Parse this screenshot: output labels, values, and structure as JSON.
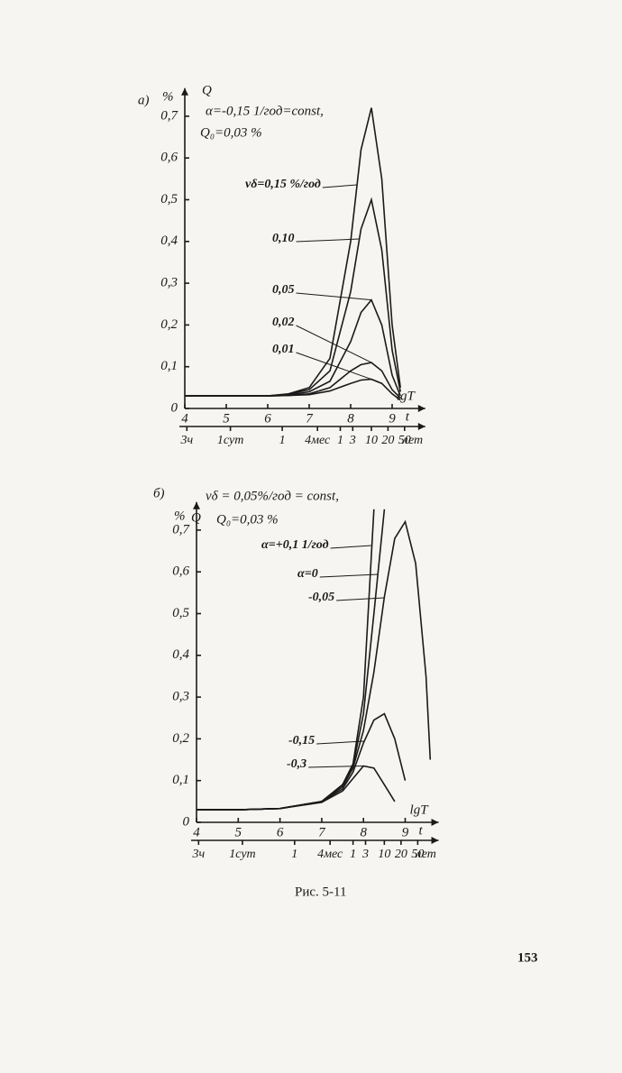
{
  "chart_data": [
    {
      "type": "line",
      "panel": "а)",
      "annotations": [
        "α=-0,15 1/год=const,",
        "Q₀=0,03 %"
      ],
      "y_unit": "%",
      "ylabel": "Q",
      "xlabel": "lgT",
      "x2label": "t",
      "time_unit": "лет",
      "xlim": [
        4,
        9.8
      ],
      "ylim": [
        0,
        0.75
      ],
      "xticks": [
        4,
        5,
        6,
        7,
        8,
        9
      ],
      "yticks": [
        0,
        {
          "value": 0.1,
          "label": "0,1"
        },
        {
          "value": 0.2,
          "label": "0,2"
        },
        {
          "value": 0.3,
          "label": "0,3"
        },
        {
          "value": 0.4,
          "label": "0,4"
        },
        {
          "value": 0.5,
          "label": "0,5"
        },
        {
          "value": 0.6,
          "label": "0,6"
        },
        {
          "value": 0.7,
          "label": "0,7"
        }
      ],
      "time_ticks": [
        {
          "value": 4.05,
          "label": "3ч"
        },
        {
          "value": 5.1,
          "label": "1сут"
        },
        {
          "value": 6.35,
          "label": "1"
        },
        {
          "value": 7.2,
          "label": "4мес"
        },
        {
          "value": 7.75,
          "label": "1"
        },
        {
          "value": 8.05,
          "label": "3"
        },
        {
          "value": 8.5,
          "label": "10"
        },
        {
          "value": 8.9,
          "label": "20"
        },
        {
          "value": 9.3,
          "label": "50"
        }
      ],
      "x": [
        4,
        5,
        6,
        6.5,
        7,
        7.5,
        8,
        8.25,
        8.5,
        8.75,
        9,
        9.2
      ],
      "series": [
        {
          "name": "vδ=0,15 %/год",
          "color": "#1a1a1a",
          "values": [
            0.03,
            0.03,
            0.03,
            0.035,
            0.05,
            0.12,
            0.4,
            0.62,
            0.72,
            0.55,
            0.2,
            0.05
          ]
        },
        {
          "name": "0,10",
          "color": "#1a1a1a",
          "values": [
            0.03,
            0.03,
            0.03,
            0.034,
            0.045,
            0.09,
            0.28,
            0.43,
            0.5,
            0.38,
            0.14,
            0.04
          ]
        },
        {
          "name": "0,05",
          "color": "#1a1a1a",
          "values": [
            0.03,
            0.03,
            0.03,
            0.032,
            0.04,
            0.065,
            0.16,
            0.23,
            0.26,
            0.2,
            0.08,
            0.03
          ]
        },
        {
          "name": "0,02",
          "color": "#1a1a1a",
          "values": [
            0.03,
            0.03,
            0.03,
            0.031,
            0.035,
            0.05,
            0.09,
            0.105,
            0.11,
            0.09,
            0.045,
            0.025
          ]
        },
        {
          "name": "0,01",
          "color": "#1a1a1a",
          "values": [
            0.03,
            0.03,
            0.03,
            0.031,
            0.033,
            0.042,
            0.06,
            0.068,
            0.07,
            0.06,
            0.035,
            0.02
          ]
        }
      ]
    },
    {
      "type": "line",
      "panel": "б)",
      "annotations": [
        "vδ = 0,05%/год = const,",
        "Q₀=0,03 %"
      ],
      "y_unit": "%",
      "ylabel": "Q",
      "xlabel": "lgT",
      "x2label": "t",
      "time_unit": "лет",
      "xlim": [
        4,
        9.8
      ],
      "ylim": [
        0,
        0.75
      ],
      "xticks": [
        4,
        5,
        6,
        7,
        8,
        9
      ],
      "yticks": [
        0,
        {
          "value": 0.1,
          "label": "0,1"
        },
        {
          "value": 0.2,
          "label": "0,2"
        },
        {
          "value": 0.3,
          "label": "0,3"
        },
        {
          "value": 0.4,
          "label": "0,4"
        },
        {
          "value": 0.5,
          "label": "0,5"
        },
        {
          "value": 0.6,
          "label": "0,6"
        },
        {
          "value": 0.7,
          "label": "0,7"
        }
      ],
      "time_ticks": [
        {
          "value": 4.05,
          "label": "3ч"
        },
        {
          "value": 5.1,
          "label": "1сут"
        },
        {
          "value": 6.35,
          "label": "1"
        },
        {
          "value": 7.2,
          "label": "4мес"
        },
        {
          "value": 7.75,
          "label": "1"
        },
        {
          "value": 8.05,
          "label": "3"
        },
        {
          "value": 8.5,
          "label": "10"
        },
        {
          "value": 8.9,
          "label": "20"
        },
        {
          "value": 9.3,
          "label": "50"
        }
      ],
      "x": [
        4,
        5,
        6,
        7,
        7.5,
        7.75,
        8,
        8.25,
        8.5,
        8.75,
        9,
        9.25,
        9.5,
        9.6
      ],
      "series": [
        {
          "name": "α=+0,1 1/год",
          "color": "#1a1a1a",
          "values": [
            0.03,
            0.03,
            0.033,
            0.05,
            0.09,
            0.14,
            0.3,
            0.75,
            null,
            null,
            null,
            null,
            null,
            null
          ]
        },
        {
          "name": "α=0",
          "color": "#1a1a1a",
          "values": [
            0.03,
            0.03,
            0.033,
            0.05,
            0.09,
            0.135,
            0.26,
            0.5,
            0.75,
            null,
            null,
            null,
            null,
            null
          ]
        },
        {
          "name": "-0,05",
          "color": "#1a1a1a",
          "values": [
            0.03,
            0.03,
            0.033,
            0.05,
            0.085,
            0.13,
            0.22,
            0.36,
            0.54,
            0.68,
            0.72,
            0.62,
            0.35,
            0.15
          ]
        },
        {
          "name": "-0,15",
          "color": "#1a1a1a",
          "values": [
            0.03,
            0.03,
            0.033,
            0.05,
            0.08,
            0.12,
            0.19,
            0.245,
            0.26,
            0.2,
            0.1,
            null,
            null,
            null
          ]
        },
        {
          "name": "-0,3",
          "color": "#1a1a1a",
          "values": [
            0.03,
            0.03,
            0.033,
            0.048,
            0.075,
            0.105,
            0.135,
            0.13,
            0.09,
            0.05,
            null,
            null,
            null,
            null
          ]
        }
      ]
    }
  ],
  "caption": "Рис. 5-11",
  "page_number": "153"
}
